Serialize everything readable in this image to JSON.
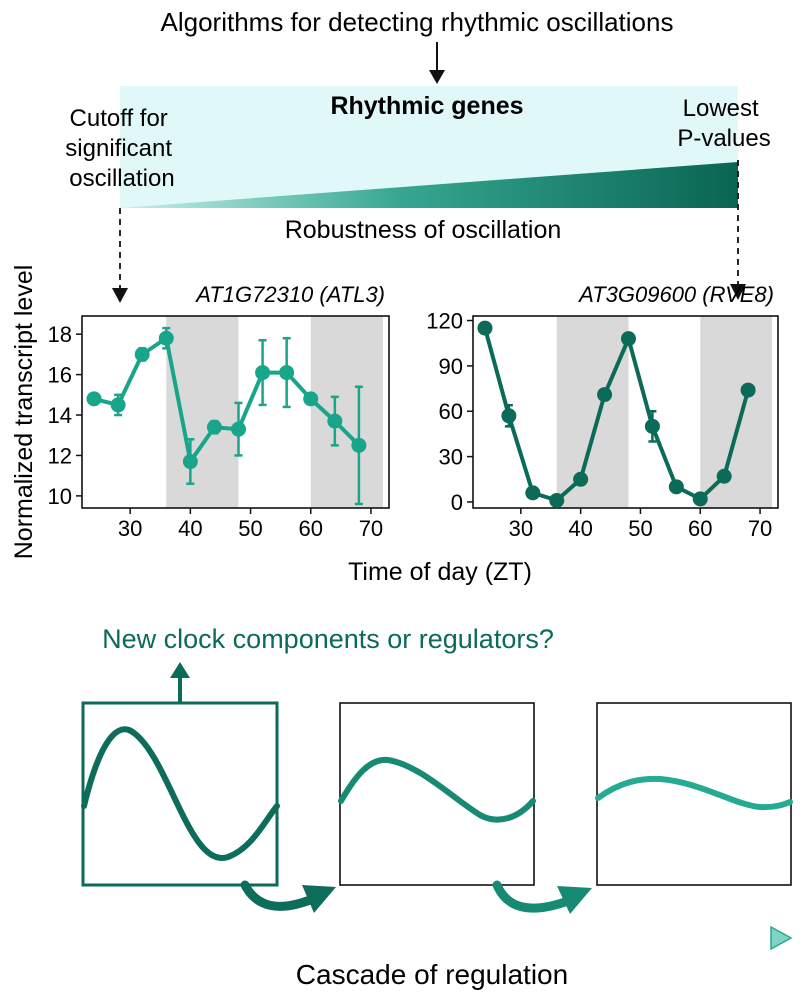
{
  "header": {
    "algorithms_label": "Algorithms for detecting rhythmic oscillations",
    "rhythmic_genes_label": "Rhythmic genes",
    "cutoff_label_lines": [
      "Cutoff for",
      "significant",
      "oscillation"
    ],
    "lowest_p_label_lines": [
      "Lowest",
      "P-values"
    ],
    "robustness_label": "Robustness of oscillation"
  },
  "colors": {
    "light_teal": "#19a58a",
    "dark_teal": "#0b6a58",
    "band_bg": "#e0f8f7",
    "dark_shade": "#d9d9d9"
  },
  "chart_data": [
    {
      "type": "line",
      "title": "AT1G72310 (ATL3)",
      "x": [
        24,
        28,
        32,
        36,
        40,
        44,
        48,
        52,
        56,
        60,
        64,
        68
      ],
      "series": [
        {
          "values": [
            14.8,
            14.5,
            17.0,
            17.8,
            11.7,
            13.4,
            13.3,
            16.1,
            16.1,
            14.8,
            13.7,
            12.5
          ],
          "errors": [
            0.15,
            0.5,
            0.3,
            0.5,
            1.1,
            0.3,
            1.3,
            1.6,
            1.7,
            0.15,
            1.2,
            2.9
          ]
        }
      ],
      "xticks": [
        30,
        40,
        50,
        60,
        70
      ],
      "yticks": [
        10,
        12,
        14,
        16,
        18
      ],
      "xlim": [
        22,
        73
      ],
      "ylim": [
        9.4,
        18.9
      ],
      "dark_periods": [
        [
          36,
          48
        ],
        [
          60,
          72
        ]
      ],
      "color": "#19a58a"
    },
    {
      "type": "line",
      "title": "AT3G09600 (RVE8)",
      "x": [
        24,
        28,
        32,
        36,
        40,
        44,
        48,
        52,
        56,
        60,
        64,
        68
      ],
      "series": [
        {
          "values": [
            115,
            57,
            6,
            1,
            15,
            71,
            108,
            50,
            10,
            2,
            17,
            74
          ],
          "errors": [
            2,
            7,
            1,
            1,
            2,
            2,
            2,
            10,
            3,
            1,
            2,
            2
          ]
        }
      ],
      "xticks": [
        30,
        40,
        50,
        60,
        70
      ],
      "yticks": [
        0,
        30,
        60,
        90,
        120
      ],
      "xlim": [
        22,
        73
      ],
      "ylim": [
        -4,
        123
      ],
      "dark_periods": [
        [
          36,
          48
        ],
        [
          60,
          72
        ]
      ],
      "color": "#0b6a58"
    }
  ],
  "charts_shared": {
    "xlabel": "Time of day (ZT)",
    "ylabel": "Normalized transcript level"
  },
  "footer": {
    "new_clock_label": "New clock components or regulators?",
    "cascade_label": "Cascade of regulation"
  }
}
